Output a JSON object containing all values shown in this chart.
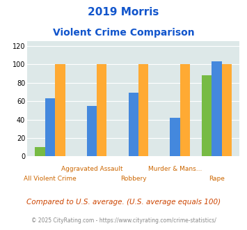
{
  "title_line1": "2019 Morris",
  "title_line2": "Violent Crime Comparison",
  "categories": [
    "All Violent Crime",
    "Aggravated Assault",
    "Robbery",
    "Murder & Mans...",
    "Rape"
  ],
  "cat_labels_line1": [
    "",
    "Aggravated Assault",
    "",
    "Murder & Mans...",
    ""
  ],
  "cat_labels_line2": [
    "All Violent Crime",
    "",
    "Robbery",
    "",
    "Rape"
  ],
  "morris": [
    10,
    0,
    0,
    0,
    88
  ],
  "minnesota": [
    63,
    55,
    69,
    42,
    103
  ],
  "national": [
    100,
    100,
    100,
    100,
    100
  ],
  "color_morris": "#77bb44",
  "color_minnesota": "#4488dd",
  "color_national": "#ffaa33",
  "bg_color": "#dde8e8",
  "ylim": [
    0,
    125
  ],
  "yticks": [
    0,
    20,
    40,
    60,
    80,
    100,
    120
  ],
  "footnote1": "Compared to U.S. average. (U.S. average equals 100)",
  "footnote2": "© 2025 CityRating.com - https://www.cityrating.com/crime-statistics/",
  "title_color": "#1155cc",
  "footnote1_color": "#cc4400",
  "footnote2_color": "#888888"
}
